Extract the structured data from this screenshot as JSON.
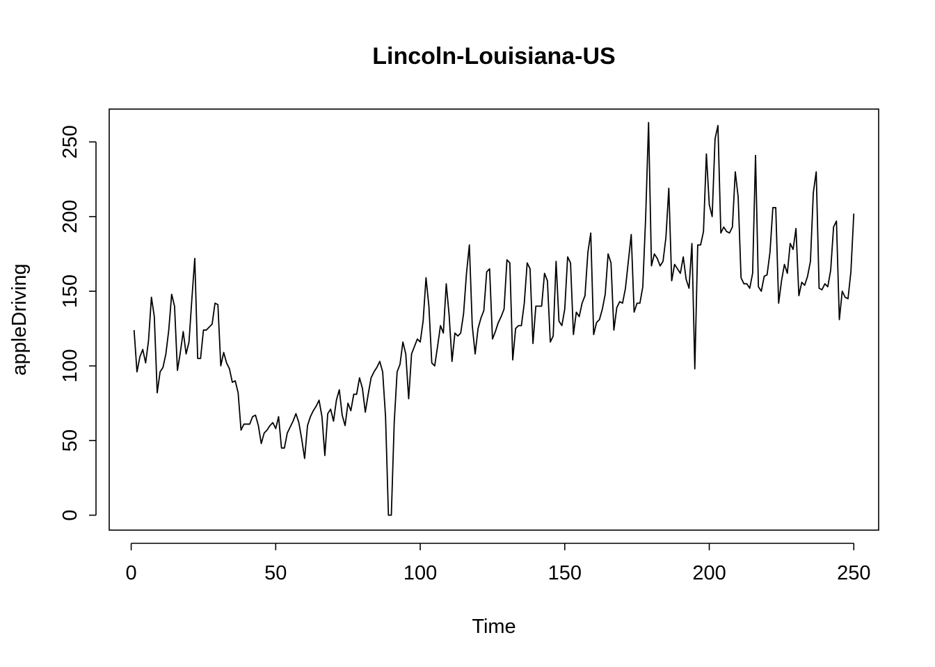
{
  "chart_data": {
    "type": "line",
    "title": "Lincoln-Louisiana-US",
    "xlabel": "Time",
    "ylabel": "appleDriving",
    "xlim": [
      -7.6,
      258.6
    ],
    "ylim": [
      -10,
      272
    ],
    "xticks": [
      0,
      50,
      100,
      150,
      200,
      250
    ],
    "yticks": [
      0,
      50,
      100,
      150,
      200,
      250
    ],
    "grid": false,
    "legend": "none",
    "series": [
      {
        "name": "appleDriving",
        "x_start": 1,
        "values": [
          124,
          96,
          106,
          111,
          102,
          117,
          146,
          133,
          82,
          96,
          99,
          108,
          124,
          148,
          140,
          97,
          109,
          123,
          108,
          116,
          145,
          172,
          105,
          105,
          124,
          124,
          126,
          128,
          142,
          141,
          100,
          109,
          102,
          98,
          89,
          90,
          82,
          57,
          61,
          61,
          61,
          66,
          67,
          60,
          48,
          55,
          57,
          60,
          62,
          58,
          66,
          45,
          45,
          55,
          59,
          63,
          68,
          62,
          51,
          38,
          60,
          66,
          70,
          73,
          77,
          66,
          40,
          68,
          71,
          63,
          77,
          84,
          67,
          60,
          75,
          70,
          81,
          81,
          92,
          85,
          69,
          81,
          92,
          96,
          99,
          103,
          96,
          66,
          0,
          0,
          62,
          96,
          101,
          116,
          108,
          78,
          108,
          113,
          118,
          116,
          130,
          159,
          140,
          102,
          100,
          113,
          127,
          122,
          155,
          134,
          103,
          122,
          120,
          122,
          135,
          162,
          181,
          127,
          108,
          125,
          132,
          137,
          163,
          165,
          118,
          123,
          129,
          133,
          138,
          171,
          169,
          104,
          125,
          127,
          127,
          142,
          169,
          165,
          115,
          140,
          140,
          140,
          162,
          157,
          116,
          120,
          170,
          130,
          127,
          138,
          173,
          169,
          121,
          136,
          133,
          142,
          147,
          176,
          189,
          121,
          129,
          131,
          138,
          148,
          175,
          169,
          124,
          139,
          143,
          142,
          152,
          170,
          188,
          136,
          142,
          142,
          153,
          200,
          263,
          167,
          175,
          172,
          167,
          170,
          186,
          219,
          157,
          168,
          165,
          162,
          173,
          158,
          152,
          182,
          98,
          181,
          181,
          190,
          242,
          208,
          200,
          252,
          261,
          189,
          193,
          190,
          189,
          193,
          230,
          213,
          159,
          155,
          155,
          152,
          162,
          241,
          153,
          150,
          160,
          161,
          176,
          206,
          206,
          142,
          157,
          168,
          162,
          182,
          178,
          192,
          147,
          156,
          154,
          160,
          170,
          216,
          230,
          152,
          151,
          155,
          153,
          164,
          193,
          197,
          131,
          150,
          146,
          145,
          163,
          202
        ]
      }
    ]
  }
}
